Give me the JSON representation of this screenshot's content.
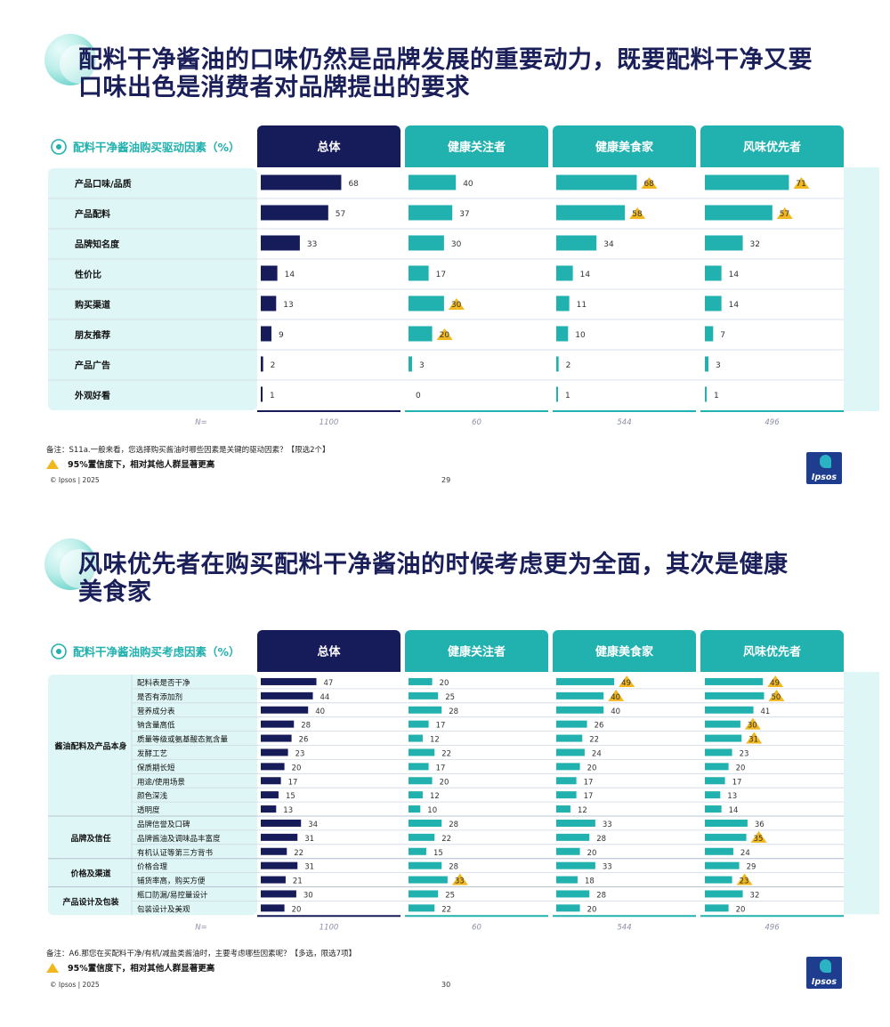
{
  "colors": {
    "navy": "#161b5a",
    "teal": "#21b1ae",
    "pale": "#dff6f6",
    "highlight": "#f1b71e"
  },
  "slides": [
    {
      "title_lines": [
        "配料干净酱油的口味仍然是品牌发展的重要动力，既要配料干净又要",
        "口味出色是消费者对品牌提出的要求"
      ],
      "note": "备注：S11a.一般来看，您选择购买酱油时哪些因素是关键的驱动因素？【限选2个】",
      "sig_label": "95%置信度下，相对其他人群显著更高",
      "copyright": "© Ipsos | 2025",
      "page": "29",
      "logo": "Ipsos"
    },
    {
      "title_lines": [
        "风味优先者在购买配料干净酱油的时候考虑更为全面，其次是健康",
        "美食家"
      ],
      "note": "备注：A6.那您在买配料干净/有机/减盐类酱油时，主要考虑哪些因素呢？【多选，限选7项】",
      "sig_label": "95%置信度下，相对其他人群显著更高",
      "copyright": "© Ipsos | 2025",
      "page": "30",
      "logo": "Ipsos"
    }
  ],
  "chart_data": [
    {
      "type": "bar",
      "title": "配料干净酱油购买驱动因素（%）",
      "n_label": "N=",
      "series": [
        {
          "name": "总体",
          "n": "1100",
          "values": [
            68,
            57,
            33,
            14,
            13,
            9,
            2,
            1
          ],
          "significant": []
        },
        {
          "name": "健康关注者",
          "n": "60",
          "values": [
            40,
            37,
            30,
            17,
            30,
            20,
            3,
            0
          ],
          "significant": [
            4,
            5
          ]
        },
        {
          "name": "健康美食家",
          "n": "544",
          "values": [
            68,
            58,
            34,
            14,
            11,
            10,
            2,
            1
          ],
          "significant": [
            0,
            1
          ]
        },
        {
          "name": "风味优先者",
          "n": "496",
          "values": [
            71,
            57,
            32,
            14,
            14,
            7,
            3,
            1
          ],
          "significant": [
            0,
            1
          ]
        }
      ],
      "categories": [
        "产品口味/品质",
        "产品配料",
        "品牌知名度",
        "性价比",
        "购买渠道",
        "朋友推荐",
        "产品广告",
        "外观好看"
      ],
      "groups": []
    },
    {
      "type": "bar",
      "title": "配料干净酱油购买考虑因素（%）",
      "n_label": "N=",
      "series": [
        {
          "name": "总体",
          "n": "1100",
          "values": [
            47,
            44,
            40,
            28,
            26,
            23,
            20,
            17,
            15,
            13,
            34,
            31,
            22,
            31,
            21,
            30,
            20
          ],
          "significant": []
        },
        {
          "name": "健康关注者",
          "n": "60",
          "values": [
            20,
            25,
            28,
            17,
            12,
            22,
            17,
            20,
            12,
            10,
            28,
            22,
            15,
            28,
            33,
            25,
            22
          ],
          "significant": [
            14
          ]
        },
        {
          "name": "健康美食家",
          "n": "544",
          "values": [
            49,
            40,
            40,
            26,
            22,
            24,
            20,
            17,
            17,
            12,
            33,
            28,
            20,
            33,
            18,
            28,
            20
          ],
          "significant": [
            0,
            1
          ]
        },
        {
          "name": "风味优先者",
          "n": "496",
          "values": [
            49,
            50,
            41,
            30,
            31,
            23,
            20,
            17,
            13,
            14,
            36,
            35,
            24,
            29,
            23,
            32,
            20
          ],
          "significant": [
            0,
            1,
            3,
            4,
            11,
            14
          ]
        }
      ],
      "categories": [
        "配料表是否干净",
        "是否有添加剂",
        "营养成分表",
        "钠含量高低",
        "质量等级或氨基酸态氮含量",
        "发酵工艺",
        "保质期长短",
        "用途/使用场景",
        "颜色深浅",
        "透明度",
        "品牌信誉及口碑",
        "品牌酱油及调味品丰富度",
        "有机认证等第三方背书",
        "价格合理",
        "铺货率高，购买方便",
        "瓶口防漏/易控量设计",
        "包装设计及美观"
      ],
      "groups": [
        {
          "label": "酱油配料及产品本身",
          "start": 0,
          "end": 9
        },
        {
          "label": "品牌及信任",
          "start": 10,
          "end": 12
        },
        {
          "label": "价格及渠道",
          "start": 13,
          "end": 14
        },
        {
          "label": "产品设计及包装",
          "start": 15,
          "end": 16
        }
      ]
    }
  ]
}
